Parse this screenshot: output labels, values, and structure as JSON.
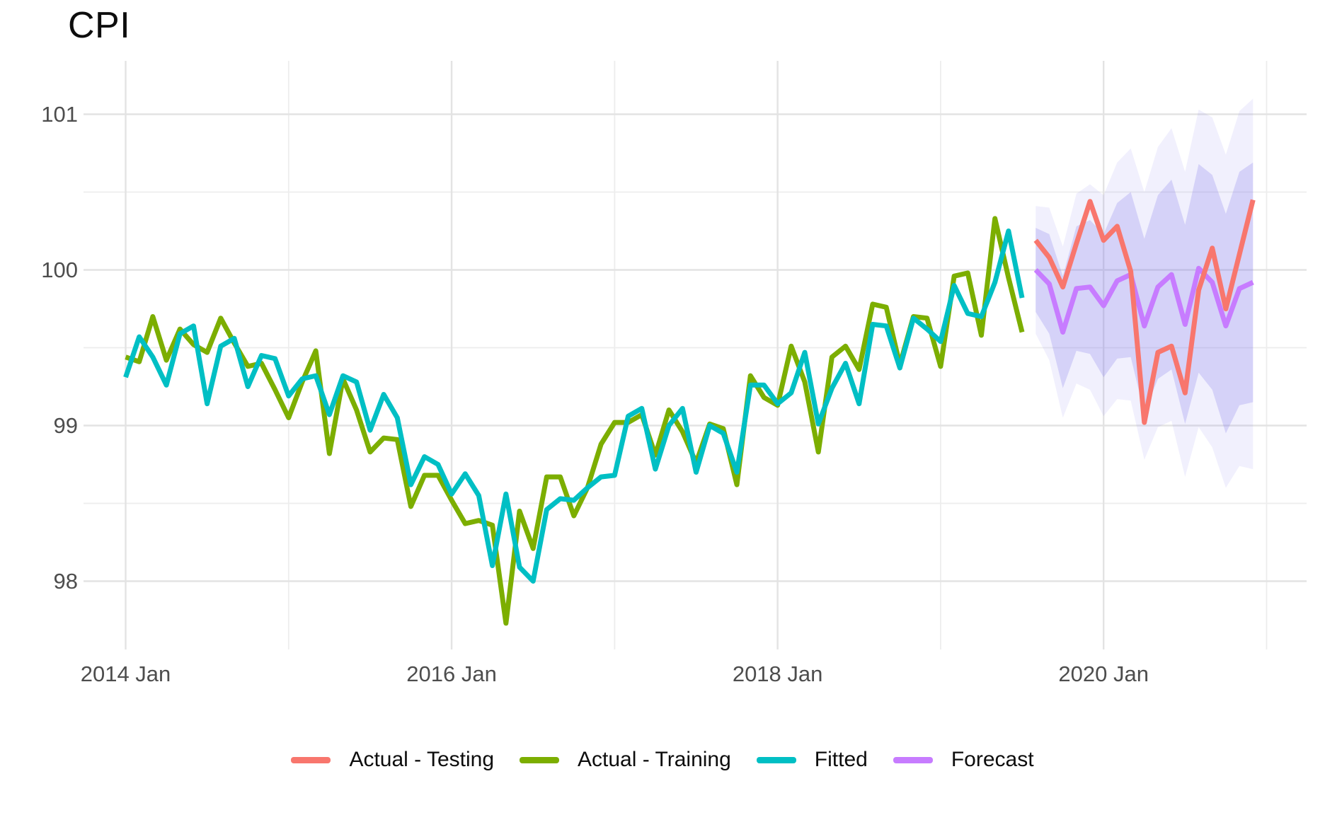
{
  "title": "CPI",
  "colors": {
    "actual_testing": "#F8766D",
    "actual_training": "#7CAE00",
    "fitted": "#00BFC4",
    "forecast": "#C77CFF",
    "band_inner": "rgba(127,115,235,0.24)",
    "band_outer": "rgba(127,115,235,0.11)",
    "grid_major": "#E3E3E3",
    "grid_minor": "#EDEDED",
    "axis_text": "#4D4D4D"
  },
  "axes": {
    "x": {
      "ticks": [
        {
          "label": "2014 Jan",
          "month_index": 0
        },
        {
          "label": "2016 Jan",
          "month_index": 24
        },
        {
          "label": "2018 Jan",
          "month_index": 48
        },
        {
          "label": "2020 Jan",
          "month_index": 72
        }
      ],
      "minor_month_indices": [
        12,
        36,
        60,
        84
      ]
    },
    "y": {
      "ticks": [
        {
          "label": "101",
          "value": 101
        },
        {
          "label": "100",
          "value": 100
        },
        {
          "label": "99",
          "value": 99
        },
        {
          "label": "98",
          "value": 98
        }
      ],
      "minor_values": [
        100.5,
        99.5,
        98.5
      ],
      "range": [
        97.55,
        101.35
      ]
    }
  },
  "legend": {
    "items": [
      {
        "label": "Actual - Testing",
        "color_key": "actual_testing"
      },
      {
        "label": "Actual - Training",
        "color_key": "actual_training"
      },
      {
        "label": "Fitted",
        "color_key": "fitted"
      },
      {
        "label": "Forecast",
        "color_key": "forecast"
      }
    ]
  },
  "chart_data": {
    "type": "line",
    "title": "CPI",
    "xlabel": "",
    "ylabel": "",
    "x_unit": "month",
    "x_origin": "2014 Jan",
    "ylim": [
      97.55,
      101.35
    ],
    "series": [
      {
        "name": "Actual - Training",
        "color_key": "actual_training",
        "start": "2014 Jan",
        "start_index": 0,
        "values": [
          99.44,
          99.41,
          99.7,
          99.42,
          99.62,
          99.52,
          99.47,
          99.69,
          99.53,
          99.38,
          99.4,
          99.23,
          99.05,
          99.28,
          99.48,
          98.82,
          99.3,
          99.1,
          98.83,
          98.92,
          98.91,
          98.48,
          98.68,
          98.68,
          98.52,
          98.37,
          98.39,
          98.36,
          97.73,
          98.45,
          98.21,
          98.67,
          98.67,
          98.42,
          98.6,
          98.88,
          99.02,
          99.02,
          99.07,
          98.81,
          99.1,
          98.96,
          98.76,
          99.01,
          98.98,
          98.62,
          99.32,
          99.18,
          99.13,
          99.51,
          99.28,
          98.83,
          99.44,
          99.51,
          99.36,
          99.78,
          99.76,
          99.39,
          99.7,
          99.69,
          99.38,
          99.96,
          99.98,
          99.58,
          100.33,
          99.95,
          99.6
        ]
      },
      {
        "name": "Fitted",
        "color_key": "fitted",
        "start": "2014 Jan",
        "start_index": 0,
        "values": [
          99.31,
          99.57,
          99.44,
          99.26,
          99.59,
          99.64,
          99.14,
          99.51,
          99.56,
          99.25,
          99.45,
          99.43,
          99.19,
          99.3,
          99.32,
          99.07,
          99.32,
          99.28,
          98.97,
          99.2,
          99.05,
          98.62,
          98.8,
          98.75,
          98.56,
          98.69,
          98.55,
          98.1,
          98.56,
          98.09,
          98.0,
          98.46,
          98.53,
          98.52,
          98.6,
          98.67,
          98.68,
          99.06,
          99.11,
          98.72,
          99.0,
          99.11,
          98.7,
          99.0,
          98.95,
          98.7,
          99.26,
          99.26,
          99.14,
          99.21,
          99.47,
          99.01,
          99.24,
          99.4,
          99.14,
          99.65,
          99.64,
          99.37,
          99.69,
          99.62,
          99.54,
          99.9,
          99.72,
          99.7,
          99.92,
          100.25,
          99.82
        ]
      },
      {
        "name": "Forecast",
        "color_key": "forecast",
        "start": "2019 Aug",
        "start_index": 67,
        "values": [
          100.0,
          99.91,
          99.6,
          99.88,
          99.89,
          99.77,
          99.93,
          99.97,
          99.64,
          99.89,
          99.97,
          99.65,
          100.01,
          99.92,
          99.64,
          99.88,
          99.92
        ]
      },
      {
        "name": "Actual - Testing",
        "color_key": "actual_testing",
        "start": "2019 Aug",
        "start_index": 67,
        "values": [
          100.19,
          100.08,
          99.89,
          100.17,
          100.44,
          100.19,
          100.28,
          99.99,
          99.02,
          99.47,
          99.51,
          99.21,
          99.87,
          100.14,
          99.75,
          100.1,
          100.45
        ]
      }
    ],
    "bands": [
      {
        "level": 95,
        "color_key": "band_outer",
        "start": "2019 Aug",
        "start_index": 67,
        "upper": [
          100.41,
          100.4,
          100.15,
          100.49,
          100.55,
          100.48,
          100.69,
          100.78,
          100.5,
          100.79,
          100.91,
          100.63,
          101.03,
          100.98,
          100.74,
          101.02,
          101.1
        ],
        "lower": [
          99.59,
          99.42,
          99.05,
          99.27,
          99.23,
          99.06,
          99.17,
          99.16,
          98.78,
          98.99,
          99.03,
          98.67,
          98.99,
          98.86,
          98.6,
          98.74,
          98.72
        ]
      },
      {
        "level": 80,
        "color_key": "band_inner",
        "start": "2019 Aug",
        "start_index": 67,
        "upper": [
          100.27,
          100.23,
          99.96,
          100.28,
          100.32,
          100.23,
          100.43,
          100.5,
          100.2,
          100.48,
          100.58,
          100.29,
          100.68,
          100.61,
          100.36,
          100.63,
          100.69
        ],
        "lower": [
          99.73,
          99.59,
          99.24,
          99.48,
          99.46,
          99.31,
          99.43,
          99.44,
          99.08,
          99.3,
          99.36,
          99.01,
          99.34,
          99.23,
          98.95,
          99.13,
          99.15
        ]
      }
    ]
  }
}
